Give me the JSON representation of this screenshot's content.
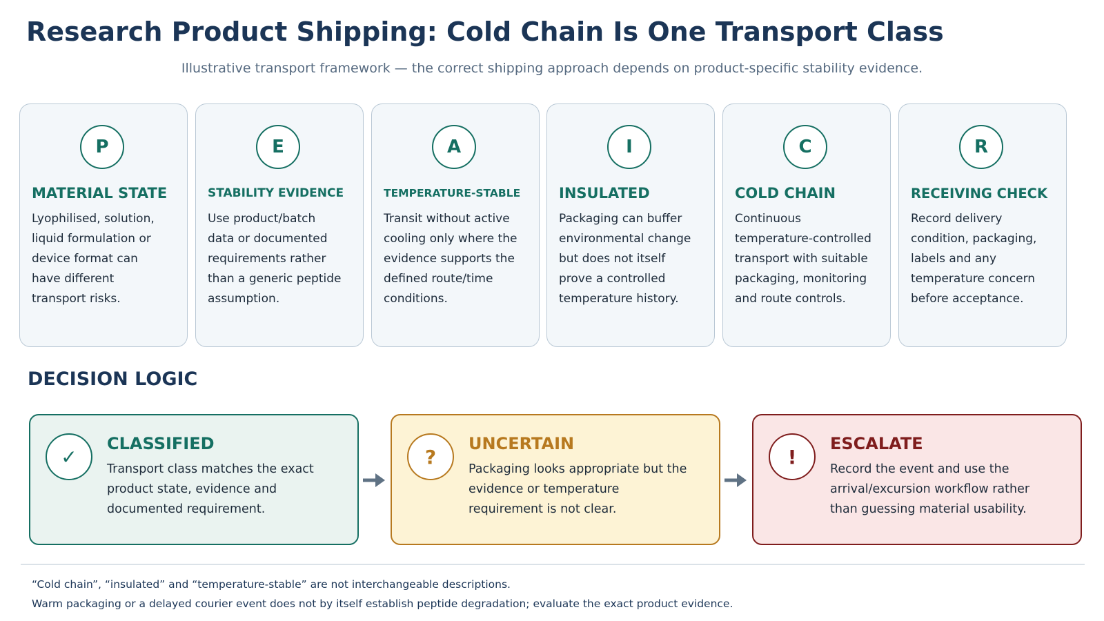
{
  "title": "Research Product Shipping: Cold Chain Is One Transport Class",
  "subtitle": "Illustrative transport framework — the correct shipping approach depends on product-specific stability evidence.",
  "cards": [
    {
      "letter": "P",
      "title": "MATERIAL STATE",
      "body": [
        "Lyophilised, solution,",
        "liquid formulation or",
        "device format can",
        "have different",
        "transport risks."
      ]
    },
    {
      "letter": "E",
      "title": "STABILITY EVIDENCE",
      "body": [
        "Use product/batch",
        "data or documented",
        "requirements rather",
        "than a generic peptide",
        "assumption."
      ]
    },
    {
      "letter": "A",
      "title": "TEMPERATURE-STABLE",
      "body": [
        "Transit without active",
        "cooling only where the",
        "evidence supports the",
        "defined route/time",
        "conditions."
      ]
    },
    {
      "letter": "I",
      "title": "INSULATED",
      "body": [
        "Packaging can buffer",
        "environmental change",
        "but does not itself",
        "prove a controlled",
        "temperature history."
      ]
    },
    {
      "letter": "C",
      "title": "COLD CHAIN",
      "body": [
        "Continuous",
        "temperature-controlled",
        "transport with suitable",
        "packaging, monitoring",
        "and route controls."
      ]
    },
    {
      "letter": "R",
      "title": "RECEIVING CHECK",
      "body": [
        "Record delivery",
        "condition, packaging,",
        "labels and any",
        "temperature concern",
        "before acceptance."
      ]
    }
  ],
  "section_label": "DECISION LOGIC",
  "decisions": [
    {
      "symbol": "✓",
      "title": "CLASSIFIED",
      "body": [
        "Transport class matches the exact",
        "product state, evidence and",
        "documented requirement."
      ]
    },
    {
      "symbol": "?",
      "title": "UNCERTAIN",
      "body": [
        "Packaging looks appropriate but the",
        "evidence or temperature",
        "requirement is not clear."
      ]
    },
    {
      "symbol": "!",
      "title": "ESCALATE",
      "body": [
        "Record the event and use the",
        "arrival/excursion workflow rather",
        "than guessing material usability."
      ]
    }
  ],
  "footnotes": [
    "“Cold chain”, “insulated” and “temperature-stable” are not interchangeable descriptions.",
    "Warm packaging or a delayed courier event does not by itself establish peptide degradation; evaluate the exact product evidence."
  ],
  "colors": {
    "navy": "#1b3556",
    "teal": "#156f62",
    "amber": "#b7791f",
    "red": "#7f1d1d",
    "card_bg": "#f3f7fa",
    "arrow": "#5f7284"
  }
}
